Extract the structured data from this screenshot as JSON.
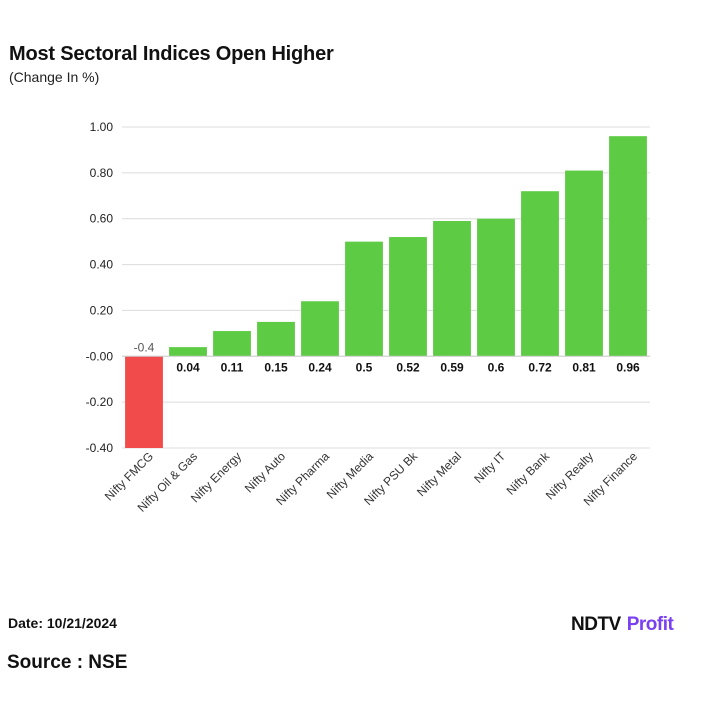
{
  "chart_data": {
    "type": "bar",
    "title": "Most Sectoral Indices Open Higher",
    "subtitle": "(Change In %)",
    "categories": [
      "Nifty FMCG",
      "Nifty Oil & Gas",
      "Nifty Energy",
      "Nifty Auto",
      "Nifty Pharma",
      "Nifty Media",
      "Nifty PSU Bk",
      "Nifty Metal",
      "Nifty IT",
      "Nifty Bank",
      "Nifty Realty",
      "Nifty Finance"
    ],
    "values": [
      -0.4,
      0.04,
      0.11,
      0.15,
      0.24,
      0.5,
      0.52,
      0.59,
      0.6,
      0.72,
      0.81,
      0.96
    ],
    "value_labels": [
      "-0.4",
      "0.04",
      "0.11",
      "0.15",
      "0.24",
      "0.5",
      "0.52",
      "0.59",
      "0.6",
      "0.72",
      "0.81",
      "0.96"
    ],
    "yticks": [
      "1.00",
      "0.80",
      "0.60",
      "0.40",
      "0.20",
      "-0.00",
      "-0.20",
      "-0.40"
    ],
    "ylim": [
      -0.4,
      1.0
    ],
    "xlabel": "",
    "ylabel": "",
    "grid": true,
    "positive_color": "#5ecb45",
    "negative_color": "#f24b4b"
  },
  "footer": {
    "date": "Date: 10/21/2024",
    "source": "Source : NSE",
    "logo_ndtv": "NDTV",
    "logo_profit": "Profit"
  }
}
